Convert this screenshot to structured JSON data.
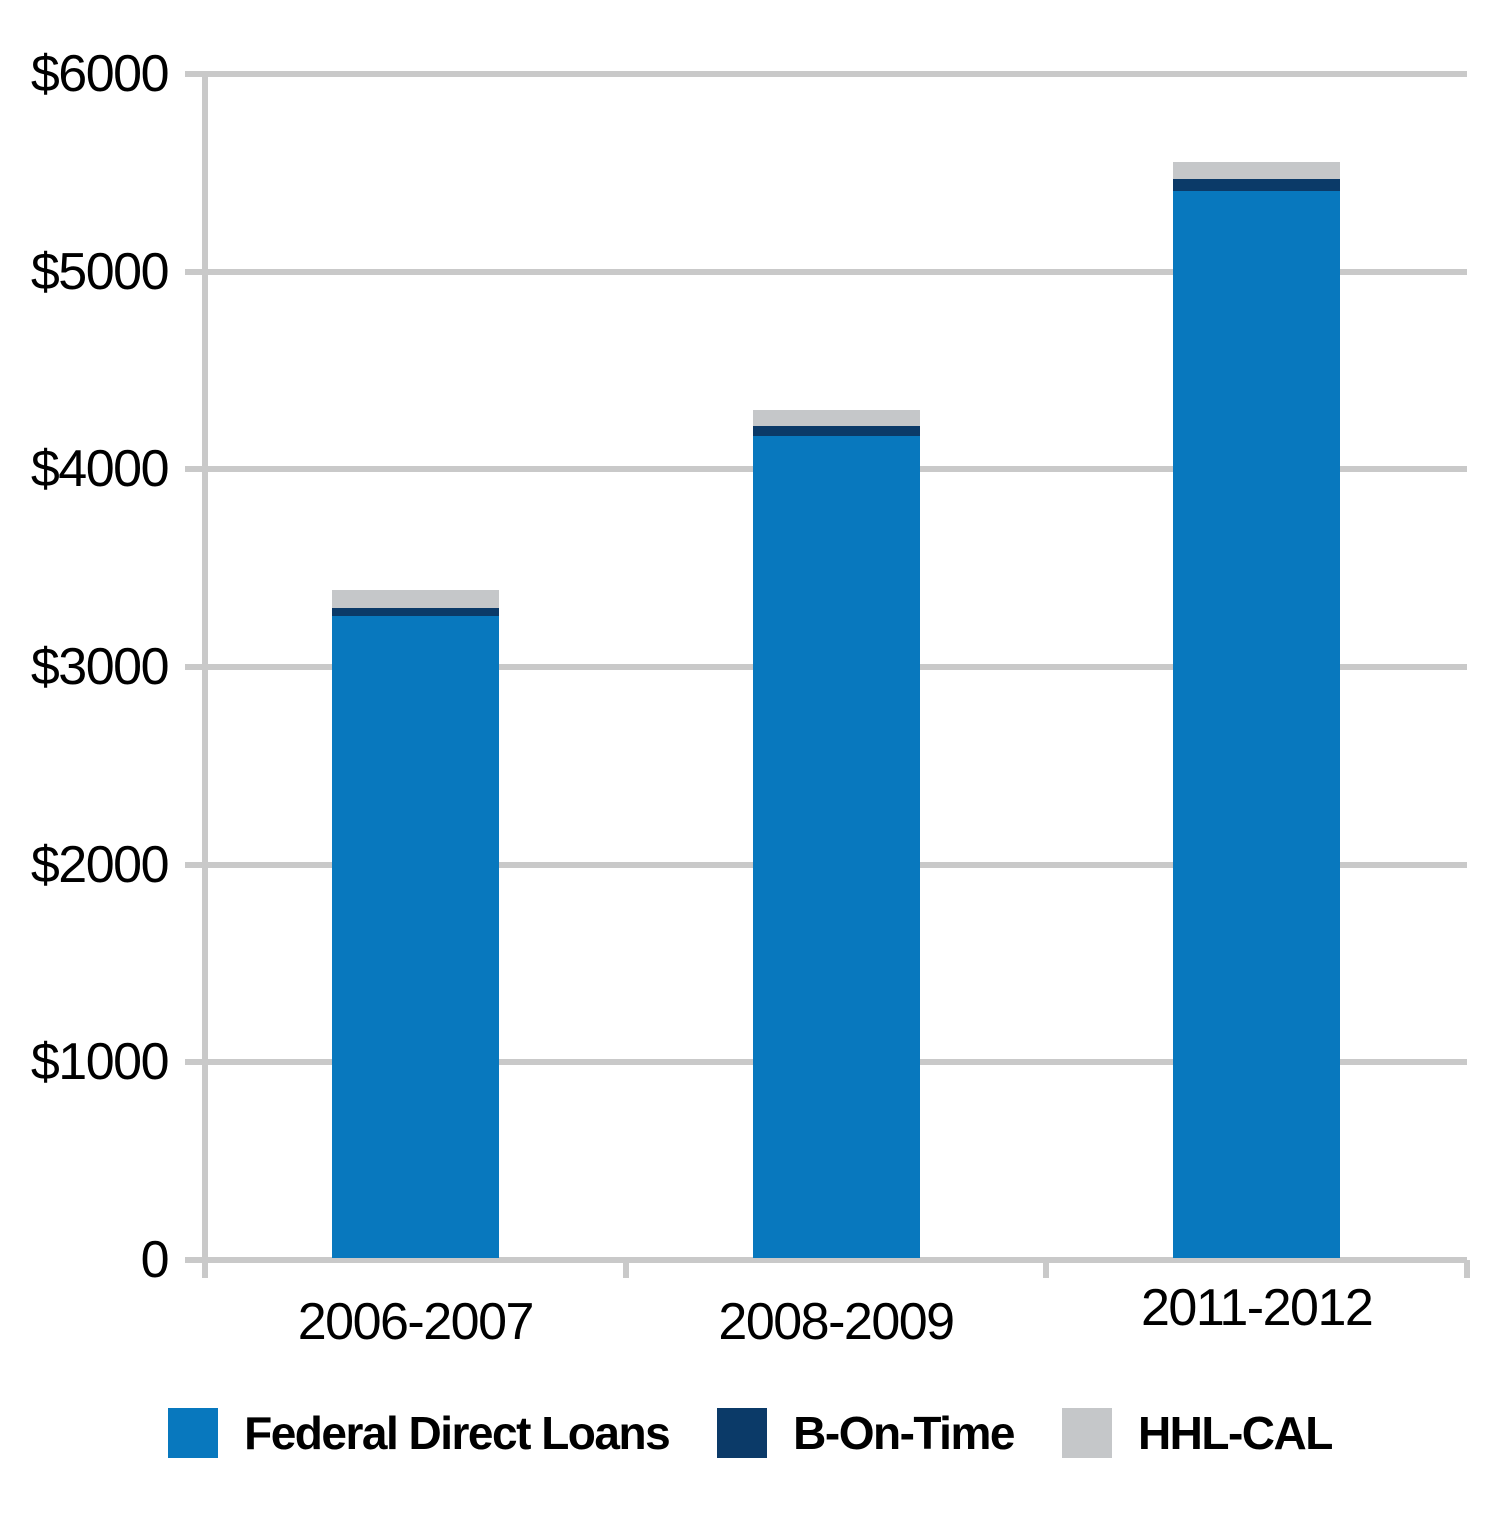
{
  "chart_data": {
    "type": "bar",
    "stacked": true,
    "title": "",
    "xlabel": "",
    "ylabel": "",
    "categories": [
      "2006-2007",
      "2008-2009",
      "2011-2012"
    ],
    "series": [
      {
        "name": "Federal Direct Loans",
        "color": "#0878BE",
        "values": [
          3250,
          4160,
          5400
        ]
      },
      {
        "name": "B-On-Time",
        "color": "#0B3A68",
        "values": [
          40,
          50,
          60
        ]
      },
      {
        "name": "HHL-CAL",
        "color": "#C5C7C9",
        "values": [
          90,
          80,
          85
        ]
      }
    ],
    "totals": [
      3380,
      4290,
      5545
    ],
    "ylim": [
      0,
      6000
    ],
    "y_ticks": [
      "$6000",
      "$5000",
      "$4000",
      "$3000",
      "$2000",
      "$1000",
      "0"
    ],
    "y_tick_values": [
      6000,
      5000,
      4000,
      3000,
      2000,
      1000,
      0
    ],
    "grid": "horizontal",
    "grid_color": "#C9C9C9",
    "text_color": "#000000",
    "legend_position": "bottom"
  }
}
